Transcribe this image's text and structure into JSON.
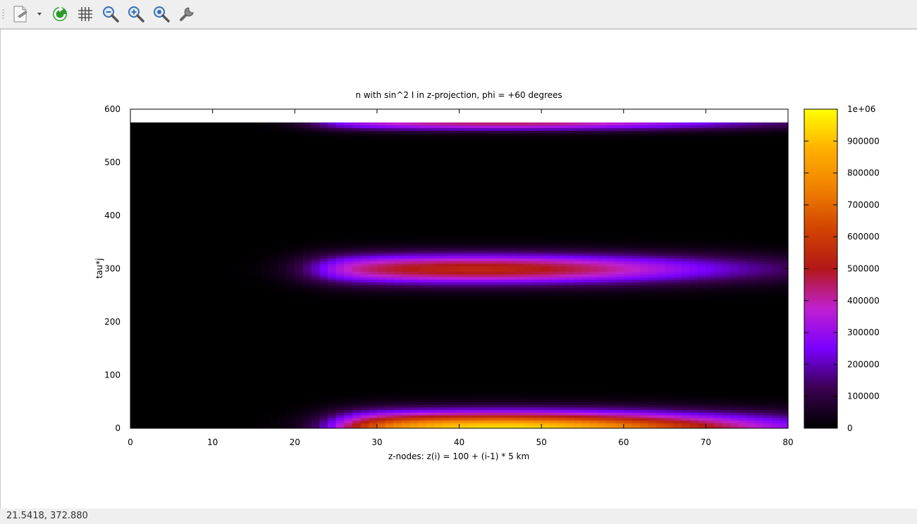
{
  "toolbar": {
    "icons": [
      "export-icon",
      "dropdown-arrow-icon",
      "replot-icon",
      "grid-icon",
      "zoom-out-icon",
      "zoom-in-icon",
      "zoom-reset-icon",
      "settings-icon"
    ]
  },
  "status": {
    "coords": "21.5418,  372.880"
  },
  "chart_data": {
    "type": "heatmap",
    "title": "n with sin^2 I in z-projection, phi = +60 degrees",
    "xlabel": "z-nodes: z(i) = 100 + (i-1) * 5 km",
    "ylabel": "tau*j",
    "xlim": [
      0,
      80
    ],
    "ylim": [
      0,
      600
    ],
    "data_extent": {
      "x": [
        0,
        80
      ],
      "y": [
        0,
        575
      ]
    },
    "x_ticks": [
      0,
      10,
      20,
      30,
      40,
      50,
      60,
      70,
      80
    ],
    "y_ticks": [
      0,
      100,
      200,
      300,
      400,
      500,
      600
    ],
    "x_tick_labels": [
      "0",
      "10",
      "20",
      "30",
      "40",
      "50",
      "60",
      "70",
      "80"
    ],
    "y_tick_labels": [
      "0",
      "100",
      "200",
      "300",
      "400",
      "500",
      "600"
    ],
    "colorbar": {
      "range": [
        0,
        1000000
      ],
      "ticks": [
        0,
        100000,
        200000,
        300000,
        400000,
        500000,
        600000,
        700000,
        800000,
        900000,
        1000000
      ],
      "tick_labels": [
        "0",
        "100000",
        "200000",
        "300000",
        "400000",
        "500000",
        "600000",
        "700000",
        "800000",
        "900000",
        "1e+06"
      ],
      "colormap": [
        "#000000",
        "#3a0050",
        "#7a00ff",
        "#c020d0",
        "#b21818",
        "#d24400",
        "#f08000",
        "#ffb000",
        "#ffff00"
      ]
    },
    "bands": [
      {
        "tau_center": 0,
        "tau_width": 30,
        "peak_z": 45,
        "peak_value": 960000,
        "onset_z": 25
      },
      {
        "tau_center": 300,
        "tau_width": 28,
        "peak_z": 42,
        "peak_value": 540000,
        "onset_z": 22
      },
      {
        "tau_center": 575,
        "tau_width": 14,
        "peak_z": 45,
        "peak_value": 450000,
        "onset_z": 22
      }
    ],
    "grid": false,
    "legend": "none"
  }
}
